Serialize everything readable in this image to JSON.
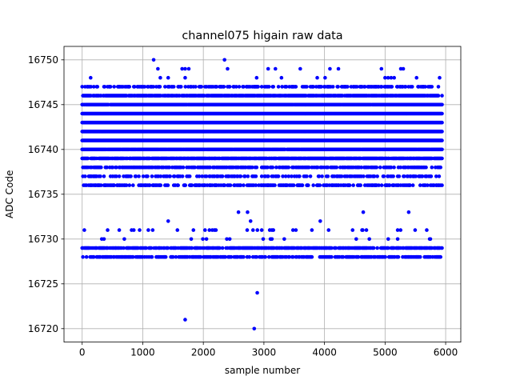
{
  "chart_data": {
    "type": "scatter",
    "title": "channel075 higain raw data",
    "xlabel": "sample number",
    "ylabel": "ADC Code",
    "xlim": [
      -300,
      6250
    ],
    "ylim": [
      16718.5,
      16751.5
    ],
    "xticks": [
      0,
      1000,
      2000,
      3000,
      4000,
      5000,
      6000
    ],
    "yticks": [
      16720,
      16725,
      16730,
      16735,
      16740,
      16745,
      16750
    ],
    "grid": true,
    "marker_color": "#0000ff",
    "sample_count": 5940,
    "levels": [
      {
        "y": 16728,
        "density": 0.55
      },
      {
        "y": 16729,
        "density": 0.7
      },
      {
        "y": 16730,
        "density": 0.03
      },
      {
        "y": 16731,
        "density": 0.06
      },
      {
        "y": 16736,
        "density": 0.5
      },
      {
        "y": 16737,
        "density": 0.4
      },
      {
        "y": 16738,
        "density": 0.55
      },
      {
        "y": 16739,
        "density": 0.85
      },
      {
        "y": 16740,
        "density": 0.95
      },
      {
        "y": 16741,
        "density": 1.0
      },
      {
        "y": 16742,
        "density": 1.0
      },
      {
        "y": 16743,
        "density": 1.0
      },
      {
        "y": 16744,
        "density": 1.0
      },
      {
        "y": 16745,
        "density": 0.97
      },
      {
        "y": 16746,
        "density": 0.85
      },
      {
        "y": 16747,
        "density": 0.45
      }
    ],
    "sparse_points": [
      {
        "x": 1180,
        "y": 16750
      },
      {
        "x": 2350,
        "y": 16750
      },
      {
        "x": 1250,
        "y": 16749
      },
      {
        "x": 1650,
        "y": 16749
      },
      {
        "x": 1700,
        "y": 16749
      },
      {
        "x": 1760,
        "y": 16749
      },
      {
        "x": 2400,
        "y": 16749
      },
      {
        "x": 3070,
        "y": 16749
      },
      {
        "x": 3190,
        "y": 16749
      },
      {
        "x": 3600,
        "y": 16749
      },
      {
        "x": 4090,
        "y": 16749
      },
      {
        "x": 4230,
        "y": 16749
      },
      {
        "x": 4940,
        "y": 16749
      },
      {
        "x": 5260,
        "y": 16749
      },
      {
        "x": 5300,
        "y": 16749
      },
      {
        "x": 140,
        "y": 16748
      },
      {
        "x": 1290,
        "y": 16748
      },
      {
        "x": 1420,
        "y": 16748
      },
      {
        "x": 1700,
        "y": 16748
      },
      {
        "x": 2880,
        "y": 16748
      },
      {
        "x": 3290,
        "y": 16748
      },
      {
        "x": 3880,
        "y": 16748
      },
      {
        "x": 4010,
        "y": 16748
      },
      {
        "x": 5000,
        "y": 16748
      },
      {
        "x": 5050,
        "y": 16748
      },
      {
        "x": 5100,
        "y": 16748
      },
      {
        "x": 5150,
        "y": 16748
      },
      {
        "x": 5520,
        "y": 16748
      },
      {
        "x": 5900,
        "y": 16748
      },
      {
        "x": 1420,
        "y": 16732
      },
      {
        "x": 3930,
        "y": 16732
      },
      {
        "x": 2580,
        "y": 16733
      },
      {
        "x": 2730,
        "y": 16733
      },
      {
        "x": 4640,
        "y": 16733
      },
      {
        "x": 5390,
        "y": 16733
      },
      {
        "x": 2780,
        "y": 16732
      },
      {
        "x": 1700,
        "y": 16721
      },
      {
        "x": 2840,
        "y": 16720
      },
      {
        "x": 2890,
        "y": 16724
      }
    ]
  }
}
